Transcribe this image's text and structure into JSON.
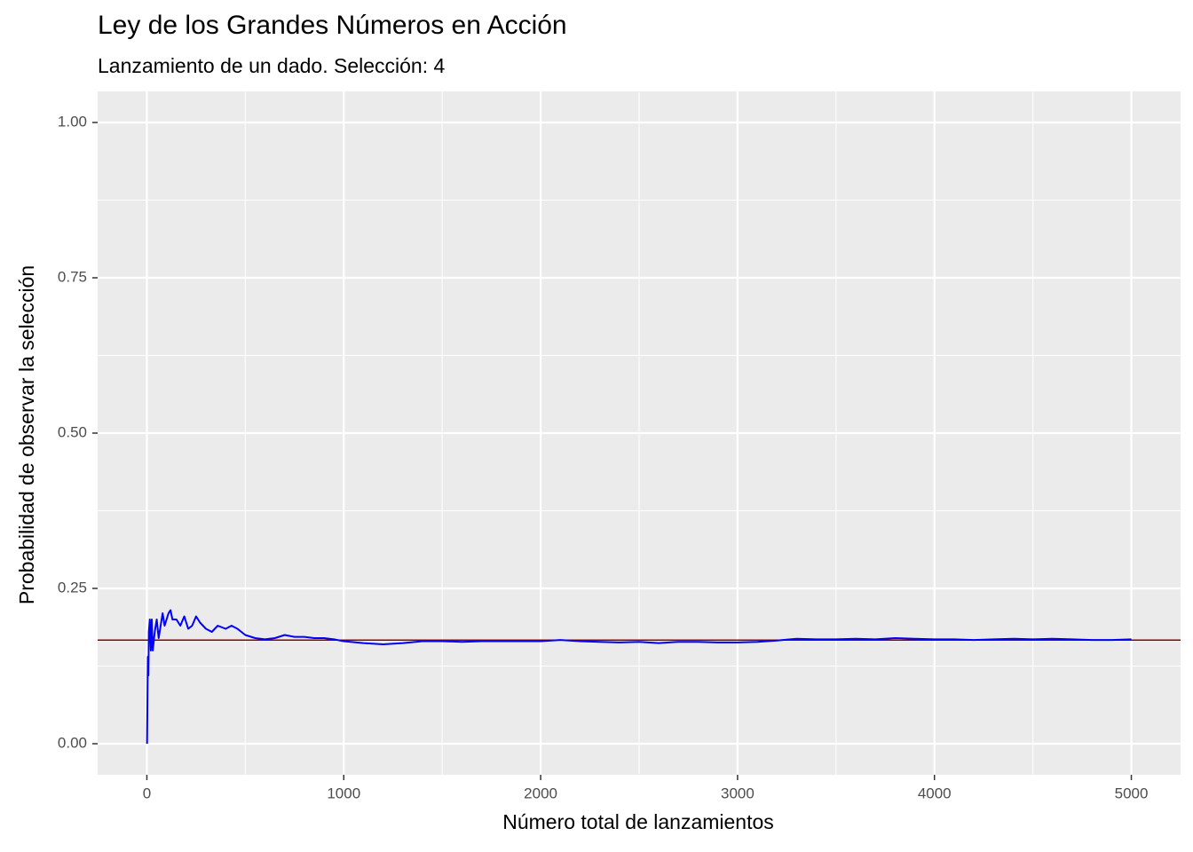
{
  "chart_data": {
    "type": "line",
    "title": "Ley de los Grandes Números en Acción",
    "subtitle": "Lanzamiento de un dado. Selección:  4",
    "x_label": "Número total de lanzamientos",
    "y_label": "Probabilidad de observar la selección",
    "x": [
      1,
      5,
      8,
      10,
      15,
      20,
      25,
      30,
      40,
      50,
      60,
      70,
      80,
      90,
      100,
      110,
      120,
      130,
      150,
      170,
      190,
      210,
      230,
      250,
      270,
      300,
      330,
      360,
      400,
      430,
      460,
      500,
      550,
      600,
      650,
      700,
      750,
      800,
      850,
      900,
      950,
      1000,
      1100,
      1200,
      1300,
      1400,
      1500,
      1600,
      1700,
      1800,
      1900,
      2000,
      2100,
      2200,
      2300,
      2400,
      2500,
      2600,
      2700,
      2800,
      2900,
      3000,
      3100,
      3200,
      3300,
      3400,
      3500,
      3600,
      3700,
      3800,
      3900,
      4000,
      4100,
      4200,
      4300,
      4400,
      4500,
      4600,
      4700,
      4800,
      4900,
      5000
    ],
    "series": [
      {
        "color": "#0000ff",
        "values": [
          0,
          0.14,
          0.11,
          0.18,
          0.2,
          0.15,
          0.2,
          0.15,
          0.18,
          0.2,
          0.17,
          0.19,
          0.21,
          0.19,
          0.2,
          0.21,
          0.215,
          0.2,
          0.2,
          0.19,
          0.205,
          0.185,
          0.19,
          0.205,
          0.195,
          0.185,
          0.18,
          0.19,
          0.185,
          0.19,
          0.185,
          0.175,
          0.17,
          0.168,
          0.17,
          0.175,
          0.172,
          0.172,
          0.17,
          0.17,
          0.168,
          0.165,
          0.162,
          0.16,
          0.162,
          0.165,
          0.165,
          0.164,
          0.165,
          0.165,
          0.165,
          0.165,
          0.167,
          0.165,
          0.164,
          0.163,
          0.164,
          0.162,
          0.164,
          0.164,
          0.163,
          0.163,
          0.164,
          0.166,
          0.169,
          0.168,
          0.168,
          0.169,
          0.168,
          0.17,
          0.169,
          0.168,
          0.168,
          0.167,
          0.168,
          0.169,
          0.168,
          0.169,
          0.168,
          0.167,
          0.167,
          0.168
        ]
      }
    ],
    "reference_line": {
      "value": 0.1667,
      "color": "#8b0000"
    },
    "xlim": [
      -250,
      5250
    ],
    "xticks": [
      0,
      1000,
      2000,
      3000,
      4000,
      5000
    ],
    "ylim": [
      -0.05,
      1.05
    ],
    "yticks": [
      {
        "value": 0,
        "label": "0.00"
      },
      {
        "value": 0.25,
        "label": "0.25"
      },
      {
        "value": 0.5,
        "label": "0.50"
      },
      {
        "value": 0.75,
        "label": "0.75"
      },
      {
        "value": 1,
        "label": "1.00"
      }
    ],
    "grid": true
  }
}
